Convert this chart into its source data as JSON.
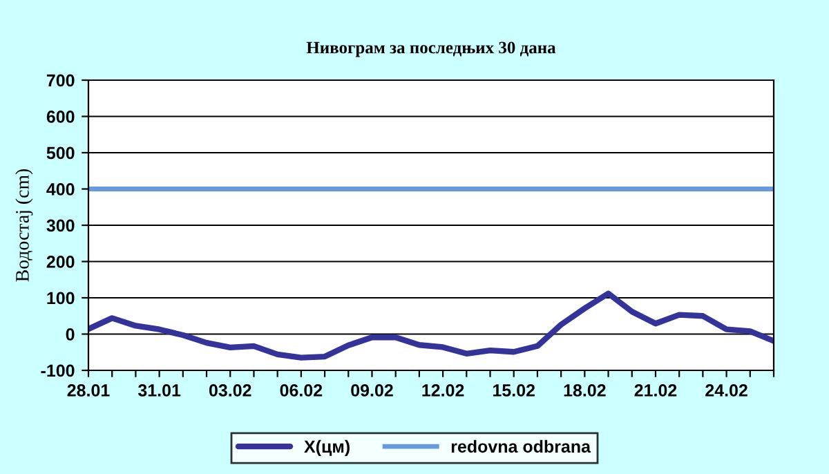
{
  "chart_data": {
    "type": "line",
    "title": "Нивограм за последњих 30 дана",
    "ylabel": "Водостај (cm)",
    "categories": [
      "28.01",
      null,
      null,
      "31.01",
      null,
      null,
      "03.02",
      null,
      null,
      "06.02",
      null,
      null,
      "09.02",
      null,
      null,
      "12.02",
      null,
      null,
      "15.02",
      null,
      null,
      "18.02",
      null,
      null,
      "21.02",
      null,
      null,
      "24.02",
      null,
      null
    ],
    "series": [
      {
        "name": "X(цм)",
        "color": "#333399",
        "values": [
          14,
          44,
          23,
          13,
          -3,
          -24,
          -37,
          -33,
          -56,
          -65,
          -62,
          -31,
          -9,
          -9,
          -30,
          -36,
          -54,
          -45,
          -49,
          -33,
          26,
          71,
          112,
          62,
          29,
          53,
          50,
          13,
          8,
          -19
        ]
      }
    ],
    "ref_lines": [
      {
        "axis": "y",
        "value": 400,
        "label": "redovna odbrana",
        "color": "#6699dd"
      }
    ],
    "ylim": [
      -100,
      700
    ],
    "yticks": [
      -100,
      0,
      100,
      200,
      300,
      400,
      500,
      600,
      700
    ],
    "grid": "y",
    "legend": "bottom",
    "marker": "none",
    "line_style": "solid"
  }
}
